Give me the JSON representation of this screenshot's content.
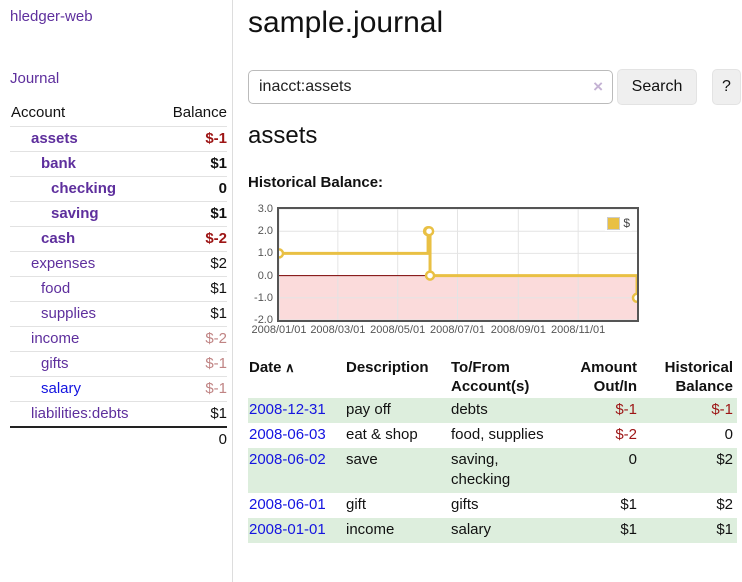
{
  "colors": {
    "accent_purple": "#5e2f9d",
    "link_blue": "#1414e0",
    "negative_strong": "#9d1515",
    "negative_soft": "#c08484",
    "row_shade_green": "#ddeedd",
    "chart_line": "#e9c044",
    "chart_negative_fill": "#fbdbdb",
    "chart_zero_line": "#7d0000"
  },
  "sidebar": {
    "app_title": "hledger-web",
    "journal_link": "Journal",
    "accounts_table": {
      "headers": {
        "account": "Account",
        "balance": "Balance"
      },
      "rows": [
        {
          "account": "assets",
          "balance": "$-1",
          "indent": 1,
          "bold": true
        },
        {
          "account": "bank",
          "balance": "$1",
          "indent": 2,
          "bold": true
        },
        {
          "account": "checking",
          "balance": "0",
          "indent": 3,
          "bold": true
        },
        {
          "account": "saving",
          "balance": "$1",
          "indent": 3,
          "bold": true
        },
        {
          "account": "cash",
          "balance": "$-2",
          "indent": 2,
          "bold": true
        },
        {
          "account": "expenses",
          "balance": "$2",
          "indent": 1,
          "bold": false
        },
        {
          "account": "food",
          "balance": "$1",
          "indent": 2,
          "bold": false
        },
        {
          "account": "supplies",
          "balance": "$1",
          "indent": 2,
          "bold": false
        },
        {
          "account": "income",
          "balance": "$-2",
          "indent": 1,
          "bold": false
        },
        {
          "account": "gifts",
          "balance": "$-1",
          "indent": 2,
          "bold": false
        },
        {
          "account": "salary",
          "balance": "$-1",
          "indent": 2,
          "bold": false,
          "link_color": "blue"
        },
        {
          "account": "liabilities:debts",
          "balance": "$1",
          "indent": 1,
          "bold": false
        }
      ],
      "total": "0"
    }
  },
  "header": {
    "title": "sample.journal"
  },
  "search": {
    "value": "inacct:assets",
    "clear_icon": "×",
    "button_label": "Search",
    "help_label": "?"
  },
  "main": {
    "account_heading": "assets",
    "chart_label": "Historical Balance:"
  },
  "chart_data": {
    "type": "line",
    "step": true,
    "title": "Historical Balance:",
    "series": [
      {
        "name": "$",
        "color": "#e9c044",
        "points": [
          [
            "2008-01-01",
            1
          ],
          [
            "2008-06-01",
            2
          ],
          [
            "2008-06-02",
            2
          ],
          [
            "2008-06-03",
            0
          ],
          [
            "2008-12-31",
            -1
          ]
        ]
      }
    ],
    "x_range": [
      "2008-01-01",
      "2008-12-31"
    ],
    "x_ticks": [
      "2008/01/01",
      "2008/03/01",
      "2008/05/01",
      "2008/07/01",
      "2008/09/01",
      "2008/11/01"
    ],
    "y_ticks": [
      "3.0",
      "2.0",
      "1.0",
      "0.0",
      "-1.0",
      "-2.0"
    ],
    "ylim": [
      -2,
      3
    ],
    "grid": true,
    "legend_position": "top-right",
    "negative_region_shaded": true
  },
  "register": {
    "headers": [
      {
        "label": "Date",
        "sort_icon": "∧"
      },
      {
        "label": "Description"
      },
      {
        "label": "To/From Account(s)"
      },
      {
        "label": "Amount Out/In"
      },
      {
        "label": "Historical Balance"
      }
    ],
    "rows": [
      {
        "date": "2008-12-31",
        "description": "pay off",
        "accounts": "debts",
        "amount": "$-1",
        "balance": "$-1",
        "shade": true
      },
      {
        "date": "2008-06-03",
        "description": "eat & shop",
        "accounts": "food, supplies",
        "amount": "$-2",
        "balance": "0",
        "shade": false
      },
      {
        "date": "2008-06-02",
        "description": "save",
        "accounts": "saving, checking",
        "amount": "0",
        "balance": "$2",
        "shade": true
      },
      {
        "date": "2008-06-01",
        "description": "gift",
        "accounts": "gifts",
        "amount": "$1",
        "balance": "$2",
        "shade": false
      },
      {
        "date": "2008-01-01",
        "description": "income",
        "accounts": "salary",
        "amount": "$1",
        "balance": "$1",
        "shade": true
      }
    ]
  }
}
